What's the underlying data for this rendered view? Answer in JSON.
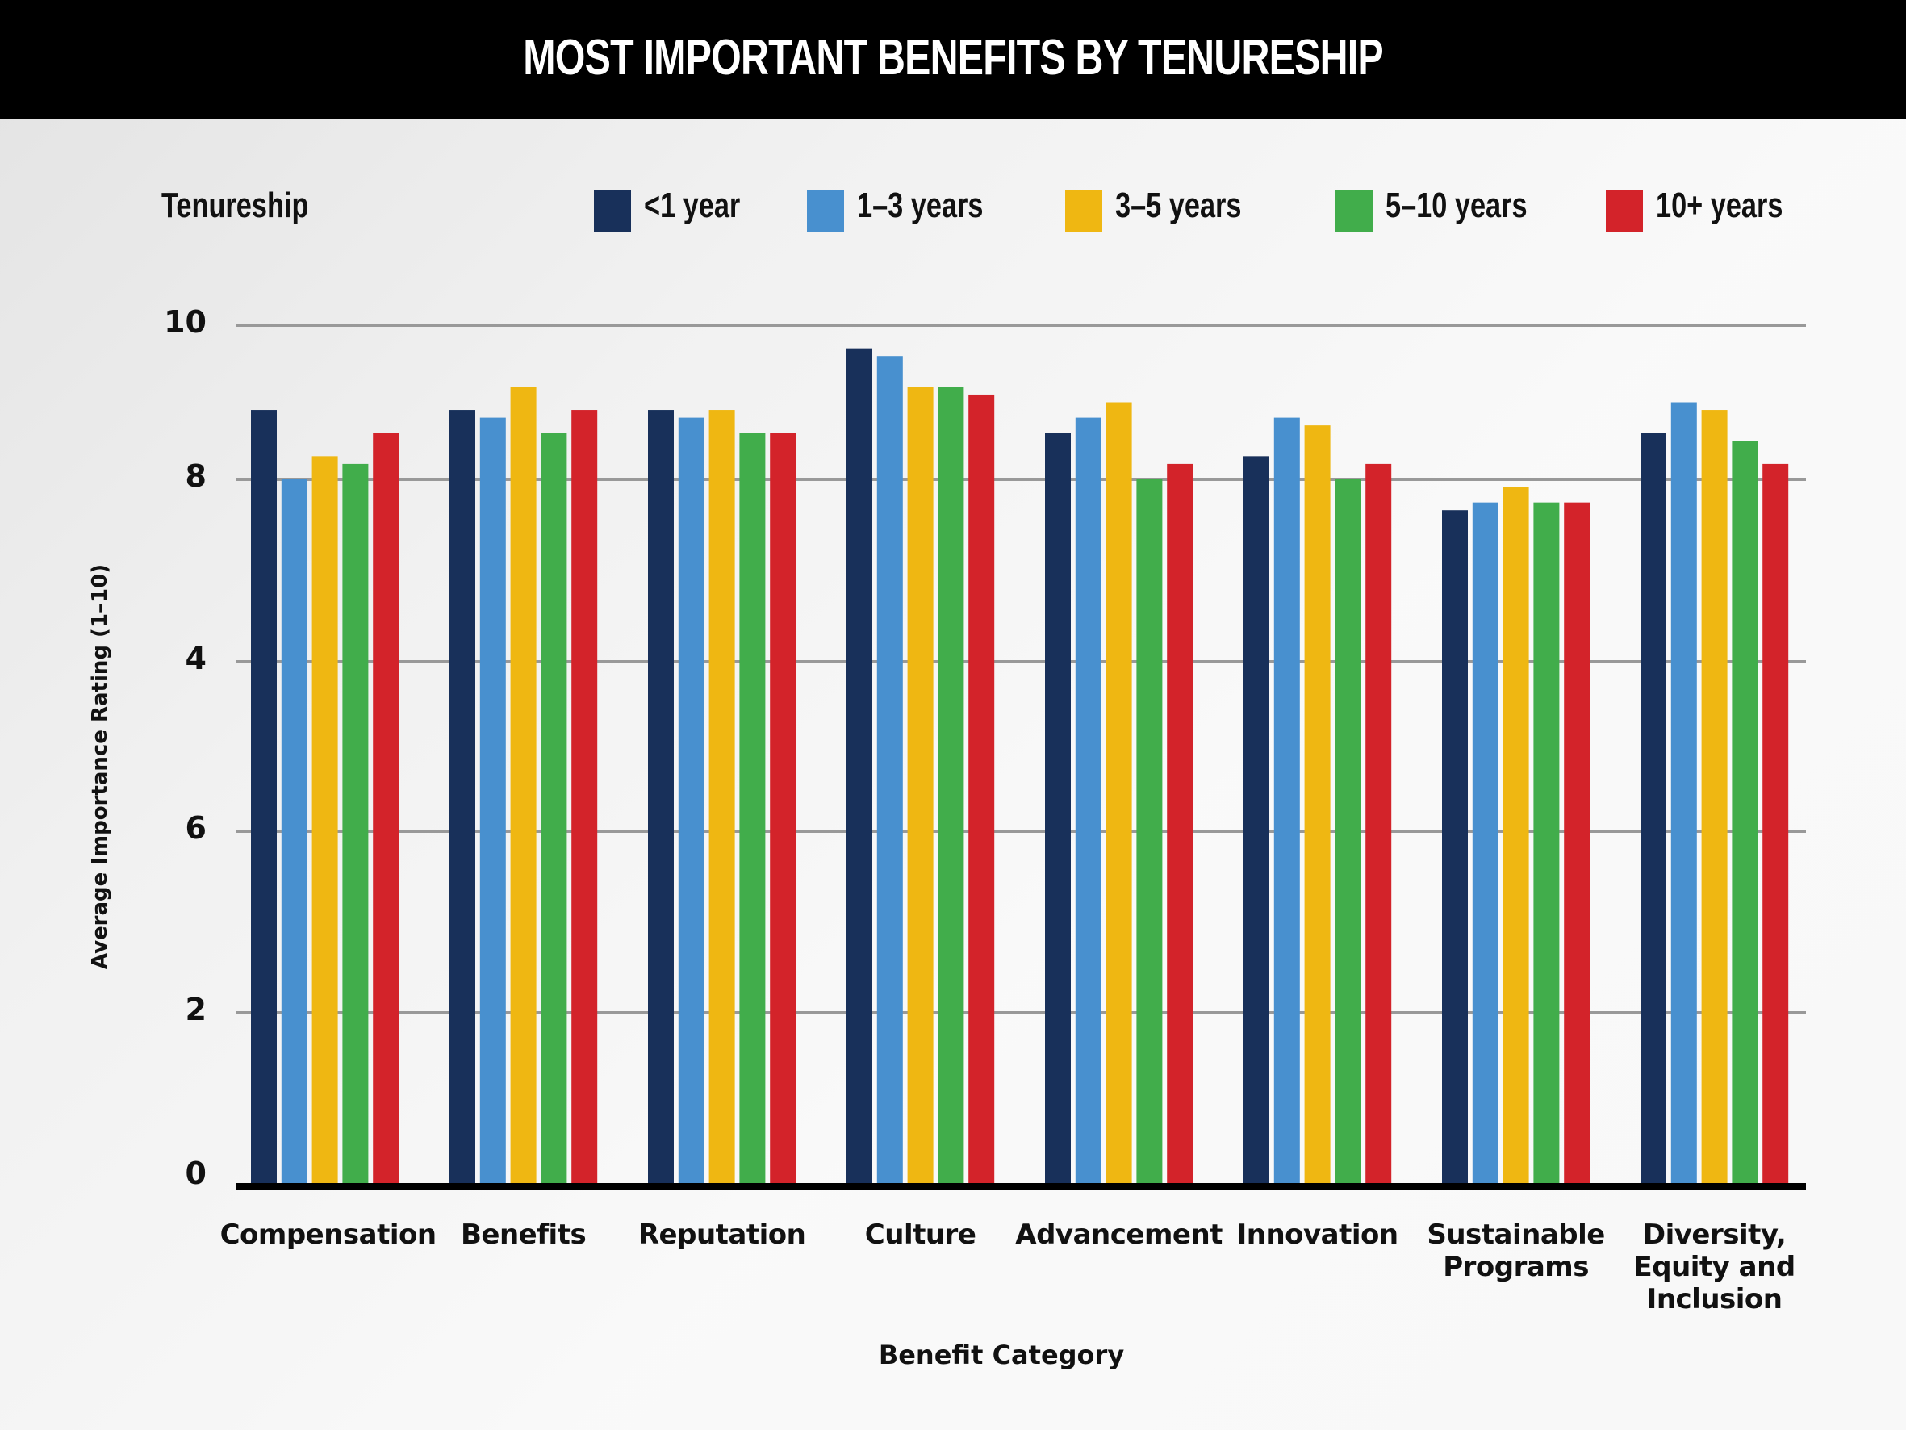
{
  "title": "MOST IMPORTANT BENEFITS BY TENURESHIP",
  "legend": {
    "title": "Tenureship",
    "placement": "top"
  },
  "colors": {
    "<1 year": "#18305a",
    "1-3 years": "#4890cf",
    "3-5 years": "#efb712",
    "5-10 years": "#41ad4b",
    "10+ years": "#d3232a",
    "gridline": "#999999",
    "baseline": "#000000",
    "header_bg": "#000000"
  },
  "chart_data": {
    "type": "bar",
    "title": "MOST IMPORTANT BENEFITS BY TENURESHIP",
    "xlabel": "Benefit Category",
    "ylabel": "Average Importance Rating (1–10)",
    "ytick_labels_top_to_bottom": [
      "10",
      "8",
      "4",
      "6",
      "2",
      "0"
    ],
    "ylim": [
      0,
      10
    ],
    "grid": true,
    "legend_placement": "top",
    "categories": [
      "Compensation",
      "Benefits",
      "Reputation",
      "Culture",
      "Advancement",
      "Innovation",
      "Sustainable Programs",
      "Diversity, Equity and Inclusion"
    ],
    "category_label_lines": [
      [
        "Compensation"
      ],
      [
        "Benefits"
      ],
      [
        "Reputation"
      ],
      [
        "Culture"
      ],
      [
        "Advancement"
      ],
      [
        "Innovation"
      ],
      [
        "Sustainable",
        "Programs"
      ],
      [
        "Diversity,",
        "Equity and",
        "Inclusion"
      ]
    ],
    "series": [
      {
        "name": "<1 year",
        "color": "#18305a",
        "values": [
          8.9,
          8.9,
          8.9,
          9.7,
          8.6,
          8.3,
          7.6,
          8.6
        ]
      },
      {
        "name": "1–3 years",
        "color": "#4890cf",
        "values": [
          8.0,
          8.8,
          8.8,
          9.6,
          8.8,
          8.8,
          7.7,
          9.0
        ]
      },
      {
        "name": "3–5 years",
        "color": "#efb712",
        "values": [
          8.3,
          9.2,
          8.9,
          9.2,
          9.0,
          8.7,
          7.9,
          8.9
        ]
      },
      {
        "name": "5–10 years",
        "color": "#41ad4b",
        "values": [
          8.2,
          8.6,
          8.6,
          9.2,
          8.0,
          8.0,
          7.7,
          8.5
        ]
      },
      {
        "name": "10+ years",
        "color": "#d3232a",
        "values": [
          8.6,
          8.9,
          8.6,
          9.1,
          8.2,
          8.2,
          7.7,
          8.2
        ]
      }
    ]
  }
}
